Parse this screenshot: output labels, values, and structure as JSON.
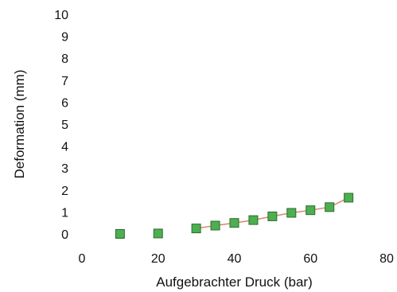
{
  "chart_data": {
    "type": "scatter",
    "title": "",
    "xlabel": "Aufgebrachter Druck (bar)",
    "ylabel": "Deformation (mm)",
    "xlim": [
      0,
      80
    ],
    "ylim": [
      0,
      10
    ],
    "x_ticks": [
      "0",
      "20",
      "40",
      "60",
      "80"
    ],
    "y_ticks": [
      "0",
      "1",
      "2",
      "3",
      "4",
      "5",
      "6",
      "7",
      "8",
      "9",
      "10"
    ],
    "grid": false,
    "legend": "none",
    "marker": "square",
    "colors": {
      "marker_fill": "#4caf50",
      "marker_edge": "#2e6b2e",
      "trend_line": "#d9866b"
    },
    "series": [
      {
        "points": [
          {
            "x": 10,
            "y": 0.0
          },
          {
            "x": 20,
            "y": 0.02
          },
          {
            "x": 30,
            "y": 0.25
          },
          {
            "x": 35,
            "y": 0.38
          },
          {
            "x": 40,
            "y": 0.5
          },
          {
            "x": 45,
            "y": 0.63
          },
          {
            "x": 50,
            "y": 0.8
          },
          {
            "x": 55,
            "y": 0.96
          },
          {
            "x": 60,
            "y": 1.08
          },
          {
            "x": 65,
            "y": 1.22
          },
          {
            "x": 70,
            "y": 1.65
          }
        ]
      }
    ],
    "trend_line": {
      "x_from": 30,
      "x_to": 70
    }
  }
}
